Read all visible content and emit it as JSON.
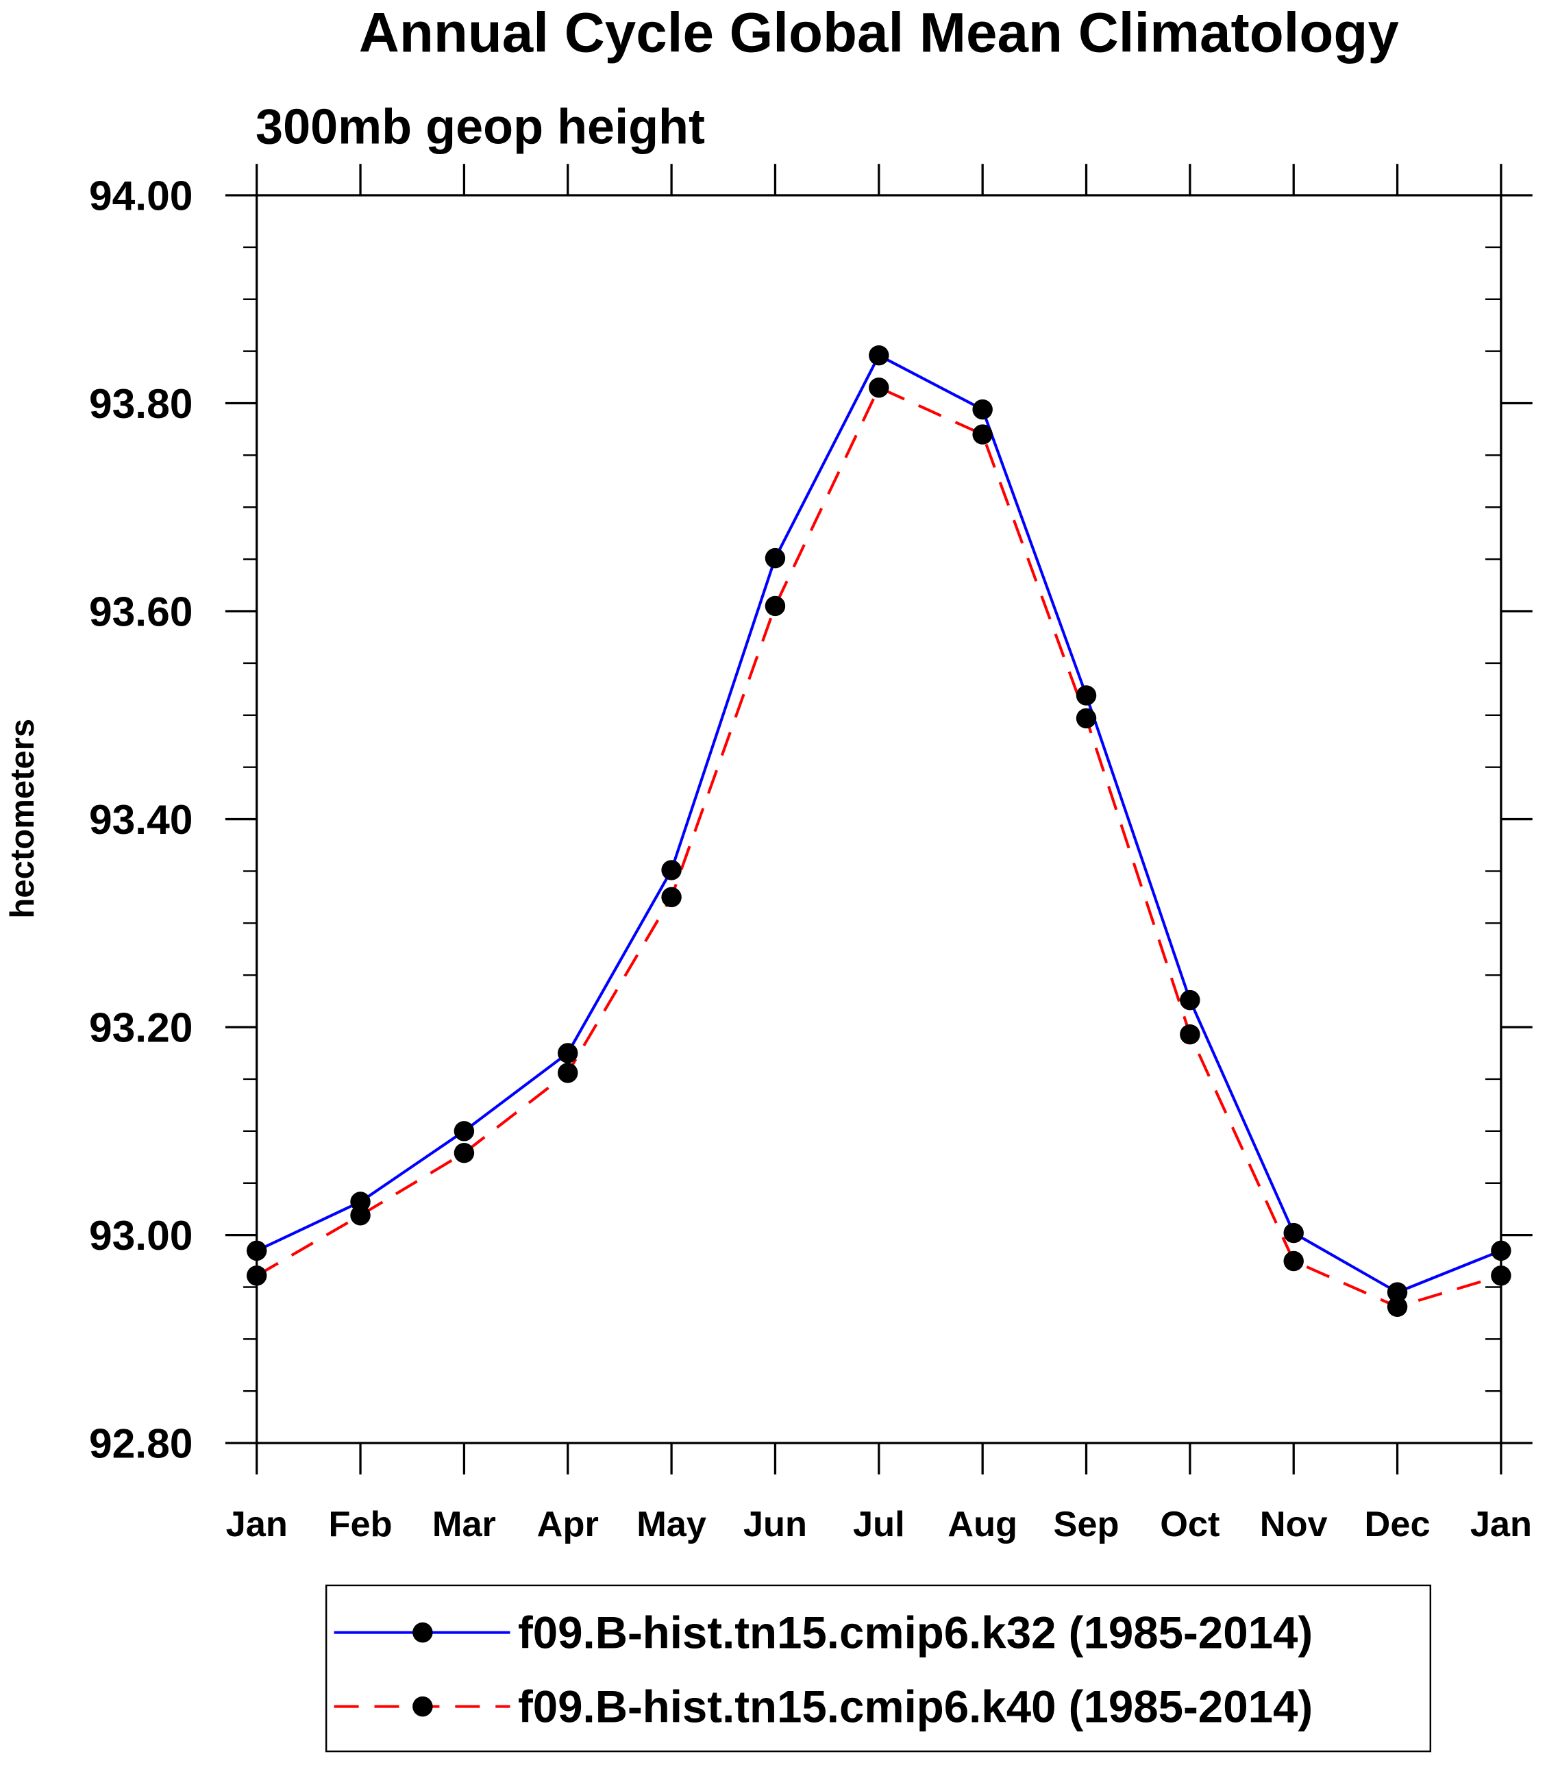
{
  "chart_data": {
    "type": "line",
    "title": "Annual Cycle Global Mean Climatology",
    "subtitle": "300mb geop height",
    "xlabel": "",
    "ylabel": "hectometers",
    "ylim": [
      92.8,
      94.0
    ],
    "yticks": [
      "92.80",
      "93.00",
      "93.20",
      "93.40",
      "93.60",
      "93.80",
      "94.00"
    ],
    "ytick_values": [
      92.8,
      93.0,
      93.2,
      93.4,
      93.6,
      93.8,
      94.0
    ],
    "categories": [
      "Jan",
      "Feb",
      "Mar",
      "Apr",
      "May",
      "Jun",
      "Jul",
      "Aug",
      "Sep",
      "Oct",
      "Nov",
      "Dec",
      "Jan"
    ],
    "grid": false,
    "legend_position": "bottom",
    "series": [
      {
        "name": "f09.B-hist.tn15.cmip6.k32 (1985-2014)",
        "color": "#0000ff",
        "dash": "solid",
        "values": [
          92.985,
          93.032,
          93.1,
          93.175,
          93.351,
          93.651,
          93.846,
          93.794,
          93.519,
          93.226,
          93.002,
          92.945,
          92.985
        ]
      },
      {
        "name": "f09.B-hist.tn15.cmip6.k40 (1985-2014)",
        "color": "#ff0000",
        "dash": "dashed",
        "values": [
          92.961,
          93.019,
          93.079,
          93.156,
          93.325,
          93.605,
          93.815,
          93.77,
          93.497,
          93.193,
          92.975,
          92.931,
          92.961
        ]
      }
    ]
  }
}
